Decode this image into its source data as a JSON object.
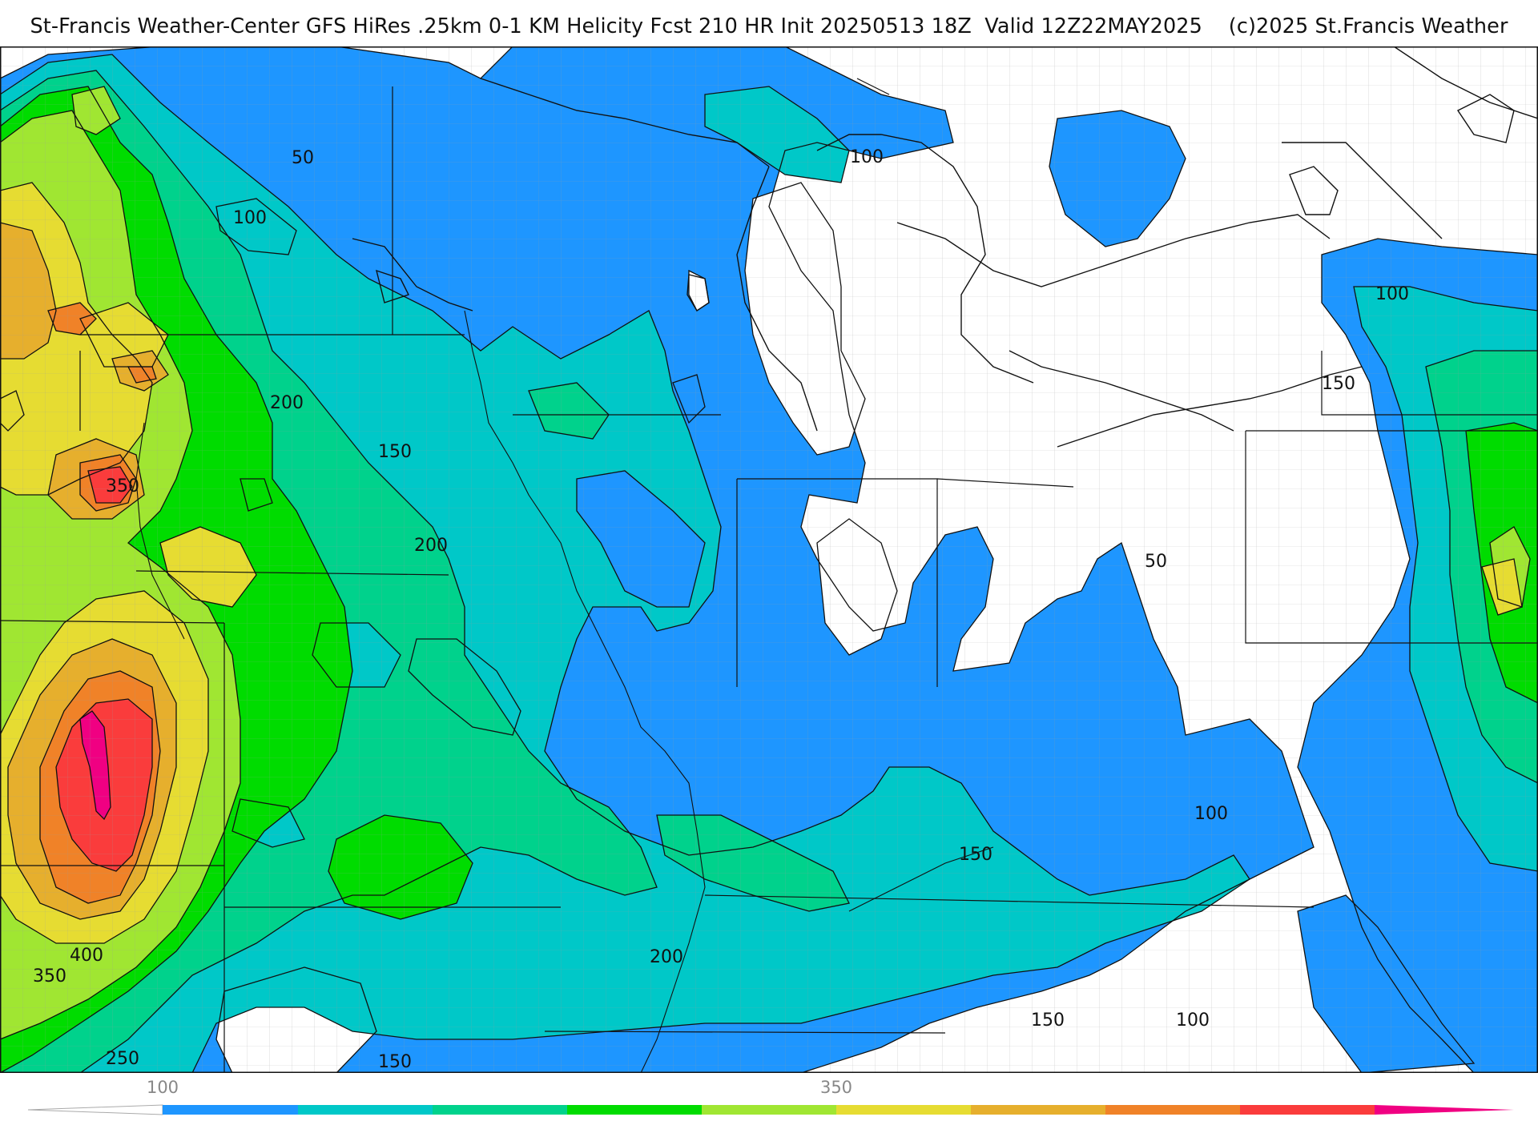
{
  "header": {
    "title": "St-Francis Weather-Center GFS HiRes .25km 0-1 KM Helicity Fcst 210 HR Init 20250513 18Z  Valid 12Z22MAY2025    (c)2025 St.Francis Weather"
  },
  "palette": {
    "c50": "#ffffff",
    "c100": "#1e96ff",
    "c150": "#00c8c8",
    "c200": "#00d28c",
    "c250": "#00dc00",
    "c300": "#a0e632",
    "c350": "#e6dc32",
    "c400": "#e6af2d",
    "c450": "#f08228",
    "c500": "#fa3c3c",
    "c550": "#f00082"
  },
  "contour_labels": [
    {
      "id": "l1",
      "text": "50"
    },
    {
      "id": "l2",
      "text": "100"
    },
    {
      "id": "l3",
      "text": "100"
    },
    {
      "id": "l4",
      "text": "200"
    },
    {
      "id": "l5",
      "text": "150"
    },
    {
      "id": "l6",
      "text": "350"
    },
    {
      "id": "l7",
      "text": "200"
    },
    {
      "id": "l8",
      "text": "50"
    },
    {
      "id": "l9",
      "text": "100"
    },
    {
      "id": "l10",
      "text": "150"
    },
    {
      "id": "l11",
      "text": "100"
    },
    {
      "id": "l12",
      "text": "150"
    },
    {
      "id": "l13",
      "text": "200"
    },
    {
      "id": "l14",
      "text": "400"
    },
    {
      "id": "l15",
      "text": "350"
    },
    {
      "id": "l16",
      "text": "250"
    },
    {
      "id": "l17",
      "text": "150"
    },
    {
      "id": "l18",
      "text": "150"
    },
    {
      "id": "l19",
      "text": "100"
    }
  ],
  "colorbar": {
    "tick_a": "100",
    "tick_b": "350"
  }
}
